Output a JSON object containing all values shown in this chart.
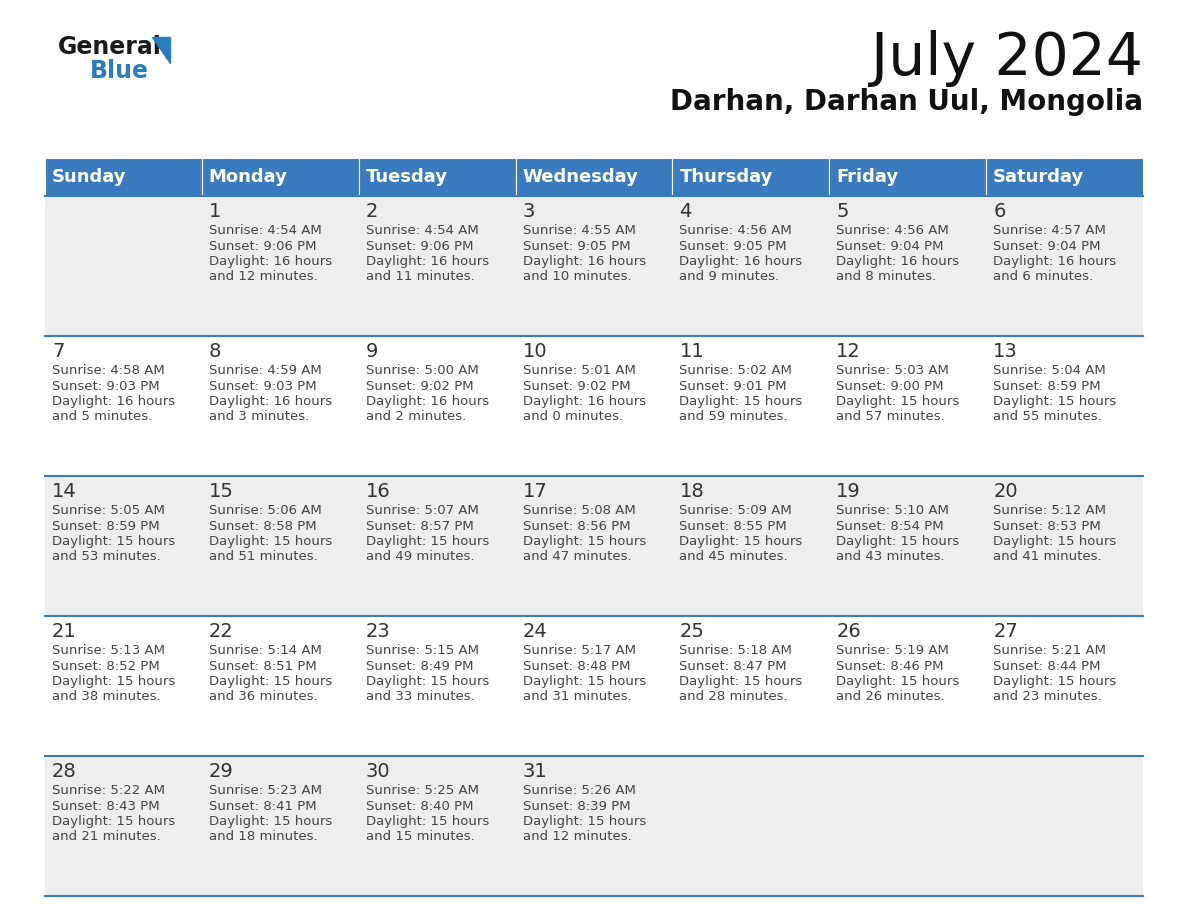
{
  "title": "July 2024",
  "subtitle": "Darhan, Darhan Uul, Mongolia",
  "header_bg": "#3a7abf",
  "header_text_color": "#ffffff",
  "day_names": [
    "Sunday",
    "Monday",
    "Tuesday",
    "Wednesday",
    "Thursday",
    "Friday",
    "Saturday"
  ],
  "row_bg_even": "#eeeeee",
  "row_bg_odd": "#ffffff",
  "cell_border_color": "#3a7abf",
  "date_text_color": "#333333",
  "info_text_color": "#444444",
  "calendar": [
    [
      {
        "date": "",
        "sunrise": "",
        "sunset": "",
        "daylight_h": "",
        "daylight_m": ""
      },
      {
        "date": "1",
        "sunrise": "4:54 AM",
        "sunset": "9:06 PM",
        "daylight_h": "16 hours",
        "daylight_m": "and 12 minutes."
      },
      {
        "date": "2",
        "sunrise": "4:54 AM",
        "sunset": "9:06 PM",
        "daylight_h": "16 hours",
        "daylight_m": "and 11 minutes."
      },
      {
        "date": "3",
        "sunrise": "4:55 AM",
        "sunset": "9:05 PM",
        "daylight_h": "16 hours",
        "daylight_m": "and 10 minutes."
      },
      {
        "date": "4",
        "sunrise": "4:56 AM",
        "sunset": "9:05 PM",
        "daylight_h": "16 hours",
        "daylight_m": "and 9 minutes."
      },
      {
        "date": "5",
        "sunrise": "4:56 AM",
        "sunset": "9:04 PM",
        "daylight_h": "16 hours",
        "daylight_m": "and 8 minutes."
      },
      {
        "date": "6",
        "sunrise": "4:57 AM",
        "sunset": "9:04 PM",
        "daylight_h": "16 hours",
        "daylight_m": "and 6 minutes."
      }
    ],
    [
      {
        "date": "7",
        "sunrise": "4:58 AM",
        "sunset": "9:03 PM",
        "daylight_h": "16 hours",
        "daylight_m": "and 5 minutes."
      },
      {
        "date": "8",
        "sunrise": "4:59 AM",
        "sunset": "9:03 PM",
        "daylight_h": "16 hours",
        "daylight_m": "and 3 minutes."
      },
      {
        "date": "9",
        "sunrise": "5:00 AM",
        "sunset": "9:02 PM",
        "daylight_h": "16 hours",
        "daylight_m": "and 2 minutes."
      },
      {
        "date": "10",
        "sunrise": "5:01 AM",
        "sunset": "9:02 PM",
        "daylight_h": "16 hours",
        "daylight_m": "and 0 minutes."
      },
      {
        "date": "11",
        "sunrise": "5:02 AM",
        "sunset": "9:01 PM",
        "daylight_h": "15 hours",
        "daylight_m": "and 59 minutes."
      },
      {
        "date": "12",
        "sunrise": "5:03 AM",
        "sunset": "9:00 PM",
        "daylight_h": "15 hours",
        "daylight_m": "and 57 minutes."
      },
      {
        "date": "13",
        "sunrise": "5:04 AM",
        "sunset": "8:59 PM",
        "daylight_h": "15 hours",
        "daylight_m": "and 55 minutes."
      }
    ],
    [
      {
        "date": "14",
        "sunrise": "5:05 AM",
        "sunset": "8:59 PM",
        "daylight_h": "15 hours",
        "daylight_m": "and 53 minutes."
      },
      {
        "date": "15",
        "sunrise": "5:06 AM",
        "sunset": "8:58 PM",
        "daylight_h": "15 hours",
        "daylight_m": "and 51 minutes."
      },
      {
        "date": "16",
        "sunrise": "5:07 AM",
        "sunset": "8:57 PM",
        "daylight_h": "15 hours",
        "daylight_m": "and 49 minutes."
      },
      {
        "date": "17",
        "sunrise": "5:08 AM",
        "sunset": "8:56 PM",
        "daylight_h": "15 hours",
        "daylight_m": "and 47 minutes."
      },
      {
        "date": "18",
        "sunrise": "5:09 AM",
        "sunset": "8:55 PM",
        "daylight_h": "15 hours",
        "daylight_m": "and 45 minutes."
      },
      {
        "date": "19",
        "sunrise": "5:10 AM",
        "sunset": "8:54 PM",
        "daylight_h": "15 hours",
        "daylight_m": "and 43 minutes."
      },
      {
        "date": "20",
        "sunrise": "5:12 AM",
        "sunset": "8:53 PM",
        "daylight_h": "15 hours",
        "daylight_m": "and 41 minutes."
      }
    ],
    [
      {
        "date": "21",
        "sunrise": "5:13 AM",
        "sunset": "8:52 PM",
        "daylight_h": "15 hours",
        "daylight_m": "and 38 minutes."
      },
      {
        "date": "22",
        "sunrise": "5:14 AM",
        "sunset": "8:51 PM",
        "daylight_h": "15 hours",
        "daylight_m": "and 36 minutes."
      },
      {
        "date": "23",
        "sunrise": "5:15 AM",
        "sunset": "8:49 PM",
        "daylight_h": "15 hours",
        "daylight_m": "and 33 minutes."
      },
      {
        "date": "24",
        "sunrise": "5:17 AM",
        "sunset": "8:48 PM",
        "daylight_h": "15 hours",
        "daylight_m": "and 31 minutes."
      },
      {
        "date": "25",
        "sunrise": "5:18 AM",
        "sunset": "8:47 PM",
        "daylight_h": "15 hours",
        "daylight_m": "and 28 minutes."
      },
      {
        "date": "26",
        "sunrise": "5:19 AM",
        "sunset": "8:46 PM",
        "daylight_h": "15 hours",
        "daylight_m": "and 26 minutes."
      },
      {
        "date": "27",
        "sunrise": "5:21 AM",
        "sunset": "8:44 PM",
        "daylight_h": "15 hours",
        "daylight_m": "and 23 minutes."
      }
    ],
    [
      {
        "date": "28",
        "sunrise": "5:22 AM",
        "sunset": "8:43 PM",
        "daylight_h": "15 hours",
        "daylight_m": "and 21 minutes."
      },
      {
        "date": "29",
        "sunrise": "5:23 AM",
        "sunset": "8:41 PM",
        "daylight_h": "15 hours",
        "daylight_m": "and 18 minutes."
      },
      {
        "date": "30",
        "sunrise": "5:25 AM",
        "sunset": "8:40 PM",
        "daylight_h": "15 hours",
        "daylight_m": "and 15 minutes."
      },
      {
        "date": "31",
        "sunrise": "5:26 AM",
        "sunset": "8:39 PM",
        "daylight_h": "15 hours",
        "daylight_m": "and 12 minutes."
      },
      {
        "date": "",
        "sunrise": "",
        "sunset": "",
        "daylight_h": "",
        "daylight_m": ""
      },
      {
        "date": "",
        "sunrise": "",
        "sunset": "",
        "daylight_h": "",
        "daylight_m": ""
      },
      {
        "date": "",
        "sunrise": "",
        "sunset": "",
        "daylight_h": "",
        "daylight_m": ""
      }
    ]
  ],
  "logo_general_color": "#1a1a1a",
  "logo_blue_color": "#2b7bbf",
  "logo_triangle_color": "#2b7bbf",
  "title_fontsize": 42,
  "subtitle_fontsize": 20,
  "header_fontsize": 13,
  "date_fontsize": 14,
  "info_fontsize": 9.5
}
